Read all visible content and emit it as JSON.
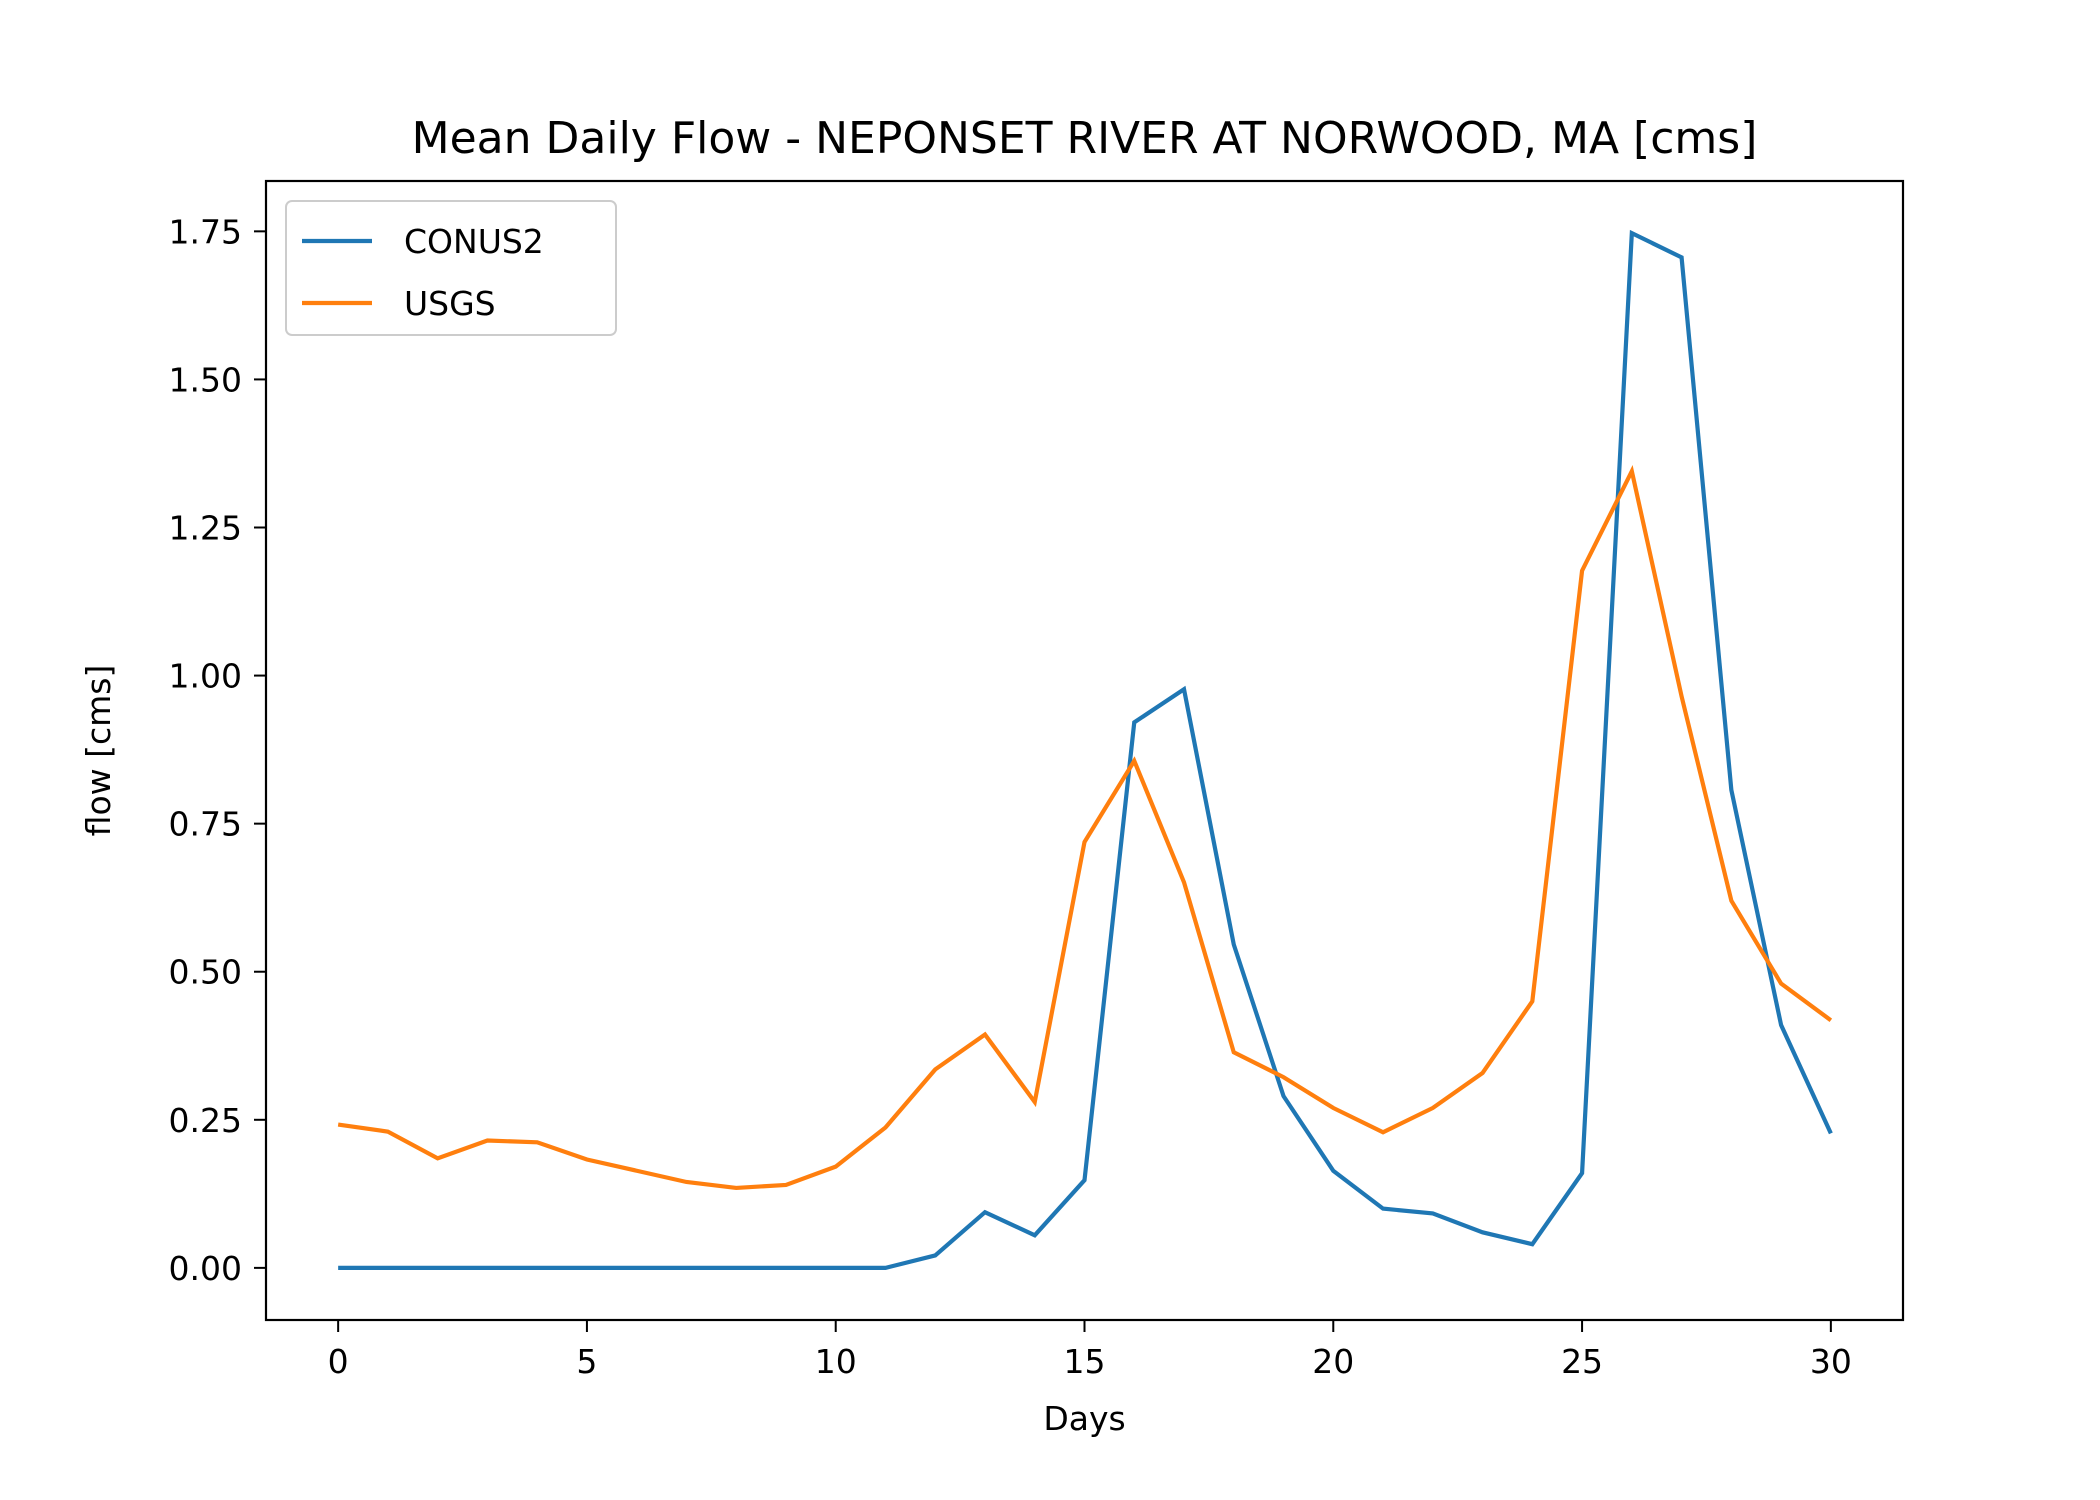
{
  "chart_data": {
    "type": "line",
    "title": "Mean Daily Flow - NEPONSET RIVER AT NORWOOD, MA [cms]",
    "xlabel": "Days",
    "ylabel": "flow [cms]",
    "xlim": [
      -1.45,
      31.45
    ],
    "ylim": [
      -0.088,
      1.835
    ],
    "xticks": [
      0,
      5,
      10,
      15,
      20,
      25,
      30
    ],
    "xtick_labels": [
      "0",
      "5",
      "10",
      "15",
      "20",
      "25",
      "30"
    ],
    "yticks": [
      0.0,
      0.25,
      0.5,
      0.75,
      1.0,
      1.25,
      1.5,
      1.75
    ],
    "ytick_labels": [
      "0.00",
      "0.25",
      "0.50",
      "0.75",
      "1.00",
      "1.25",
      "1.50",
      "1.75"
    ],
    "grid": false,
    "legend_position": "upper-left",
    "x": [
      0,
      1,
      2,
      3,
      4,
      5,
      6,
      7,
      8,
      9,
      10,
      11,
      12,
      13,
      14,
      15,
      16,
      17,
      18,
      19,
      20,
      21,
      22,
      23,
      24,
      25,
      26,
      27,
      28,
      29,
      30
    ],
    "series": [
      {
        "name": "CONUS2",
        "color": "#1f77b4",
        "values": [
          0.0,
          0.0,
          0.0,
          0.0,
          0.0,
          0.0,
          0.0,
          0.0,
          0.0,
          0.0,
          0.0,
          0.0,
          0.021,
          0.094,
          0.055,
          0.148,
          0.921,
          0.977,
          0.546,
          0.29,
          0.164,
          0.1,
          0.092,
          0.06,
          0.04,
          0.16,
          1.747,
          1.706,
          0.807,
          0.41,
          0.227
        ]
      },
      {
        "name": "USGS",
        "color": "#ff7f0e",
        "values": [
          0.242,
          0.23,
          0.185,
          0.215,
          0.212,
          0.183,
          0.164,
          0.145,
          0.135,
          0.14,
          0.171,
          0.237,
          0.335,
          0.394,
          0.28,
          0.719,
          0.856,
          0.651,
          0.364,
          0.322,
          0.27,
          0.229,
          0.27,
          0.329,
          0.45,
          1.177,
          1.345,
          0.965,
          0.62,
          0.48,
          0.418
        ]
      }
    ]
  }
}
